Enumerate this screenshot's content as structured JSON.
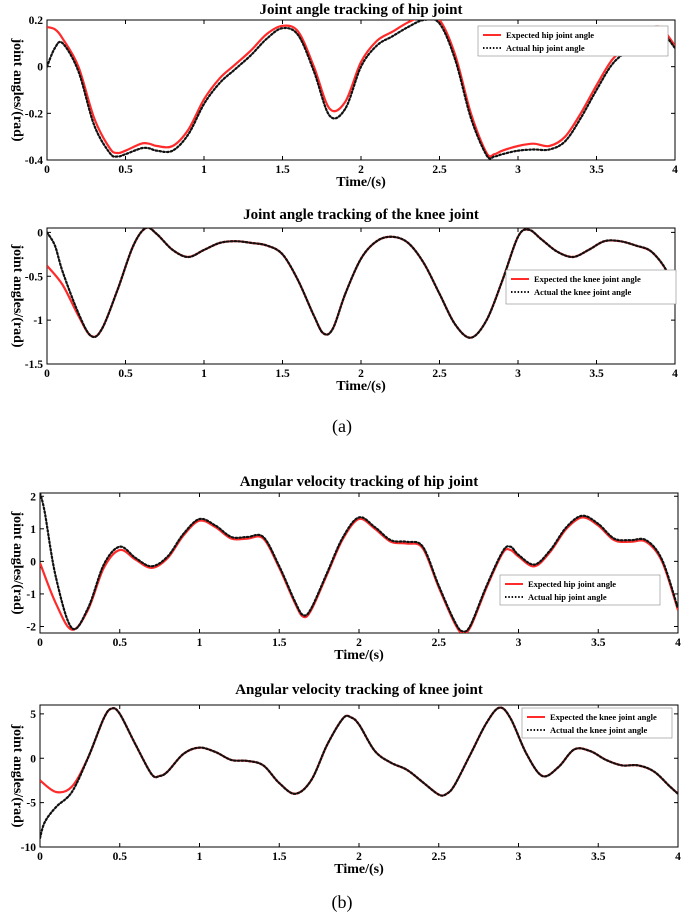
{
  "captions": {
    "a": "(a)",
    "b": "(b)"
  },
  "chart_data": [
    {
      "type": "line",
      "title": "Joint angle tracking of hip joint",
      "xlabel": "Time/(s)",
      "ylabel": "joint angles/(rad)",
      "xlim": [
        0,
        4
      ],
      "ylim": [
        -0.4,
        0.2
      ],
      "xticks": [
        "0",
        "0.5",
        "1",
        "1.5",
        "2",
        "2.5",
        "3",
        "3.5",
        "4"
      ],
      "yticks": [
        "0.2",
        "0",
        "-0.2",
        "-0.4"
      ],
      "grid": false,
      "legend_position": "top-right",
      "colors": {
        "expected": "#ff2a2a",
        "actual": "#111111"
      },
      "series": [
        {
          "name": "Expected hip joint angle",
          "style": "solid",
          "x": [
            0,
            0.05,
            0.1,
            0.2,
            0.3,
            0.4,
            0.45,
            0.5,
            0.6,
            0.65,
            0.7,
            0.8,
            0.9,
            1.0,
            1.1,
            1.2,
            1.3,
            1.4,
            1.5,
            1.6,
            1.7,
            1.8,
            1.9,
            2.0,
            2.1,
            2.2,
            2.3,
            2.4,
            2.5,
            2.6,
            2.7,
            2.8,
            2.85,
            2.9,
            3.0,
            3.1,
            3.2,
            3.3,
            3.4,
            3.5,
            3.6,
            3.7,
            3.8,
            3.9,
            4.0
          ],
          "y": [
            0.17,
            0.16,
            0.12,
            0.0,
            -0.22,
            -0.35,
            -0.37,
            -0.36,
            -0.33,
            -0.33,
            -0.34,
            -0.34,
            -0.27,
            -0.14,
            -0.05,
            0.01,
            0.07,
            0.14,
            0.175,
            0.15,
            0.0,
            -0.18,
            -0.15,
            0.02,
            0.11,
            0.15,
            0.19,
            0.215,
            0.2,
            0.05,
            -0.2,
            -0.37,
            -0.375,
            -0.36,
            -0.34,
            -0.33,
            -0.34,
            -0.3,
            -0.2,
            -0.08,
            0.03,
            0.09,
            0.14,
            0.17,
            0.09
          ]
        },
        {
          "name": "Actual hip joint angle",
          "style": "dotted",
          "x": [
            0,
            0.05,
            0.1,
            0.2,
            0.3,
            0.4,
            0.45,
            0.5,
            0.6,
            0.65,
            0.7,
            0.8,
            0.9,
            1.0,
            1.1,
            1.2,
            1.3,
            1.4,
            1.5,
            1.6,
            1.7,
            1.8,
            1.9,
            2.0,
            2.1,
            2.2,
            2.3,
            2.4,
            2.5,
            2.6,
            2.7,
            2.8,
            2.85,
            2.9,
            3.0,
            3.1,
            3.2,
            3.3,
            3.4,
            3.5,
            3.6,
            3.7,
            3.8,
            3.9,
            4.0
          ],
          "y": [
            0.0,
            0.08,
            0.1,
            -0.02,
            -0.25,
            -0.37,
            -0.385,
            -0.375,
            -0.35,
            -0.35,
            -0.36,
            -0.36,
            -0.29,
            -0.16,
            -0.07,
            -0.01,
            0.05,
            0.12,
            0.165,
            0.135,
            -0.02,
            -0.21,
            -0.18,
            0.0,
            0.09,
            0.13,
            0.17,
            0.2,
            0.185,
            0.03,
            -0.22,
            -0.38,
            -0.385,
            -0.375,
            -0.36,
            -0.355,
            -0.355,
            -0.32,
            -0.22,
            -0.1,
            0.01,
            0.07,
            0.12,
            0.155,
            0.08
          ]
        }
      ]
    },
    {
      "type": "line",
      "title": "Joint angle tracking of the knee joint",
      "xlabel": "Time/(s)",
      "ylabel": "joint angles/(rad)",
      "xlim": [
        0,
        4
      ],
      "ylim": [
        -1.5,
        0.05
      ],
      "xticks": [
        "0",
        "0.5",
        "1",
        "1.5",
        "2",
        "2.5",
        "3",
        "3.5",
        "4"
      ],
      "yticks": [
        "0",
        "-0.5",
        "-1",
        "-1.5"
      ],
      "grid": false,
      "legend_position": "right",
      "colors": {
        "expected": "#ff2a2a",
        "actual": "#111111"
      },
      "series": [
        {
          "name": "Expected the knee joint angle",
          "style": "solid",
          "x": [
            0,
            0.1,
            0.2,
            0.28,
            0.35,
            0.45,
            0.55,
            0.63,
            0.7,
            0.8,
            0.9,
            1.0,
            1.1,
            1.2,
            1.3,
            1.4,
            1.5,
            1.6,
            1.7,
            1.76,
            1.82,
            1.9,
            2.0,
            2.1,
            2.2,
            2.3,
            2.4,
            2.5,
            2.6,
            2.7,
            2.8,
            2.9,
            3.0,
            3.07,
            3.15,
            3.25,
            3.35,
            3.45,
            3.55,
            3.65,
            3.75,
            3.85,
            3.95,
            4.0
          ],
          "y": [
            -0.38,
            -0.6,
            -0.95,
            -1.18,
            -1.1,
            -0.65,
            -0.15,
            0.05,
            -0.02,
            -0.2,
            -0.28,
            -0.2,
            -0.12,
            -0.1,
            -0.12,
            -0.15,
            -0.25,
            -0.55,
            -0.95,
            -1.15,
            -1.1,
            -0.7,
            -0.3,
            -0.1,
            -0.05,
            -0.12,
            -0.35,
            -0.7,
            -1.05,
            -1.2,
            -1.0,
            -0.55,
            -0.05,
            0.03,
            -0.08,
            -0.22,
            -0.28,
            -0.2,
            -0.1,
            -0.1,
            -0.15,
            -0.22,
            -0.45,
            -0.75
          ]
        },
        {
          "name": "Actual the knee joint angle",
          "style": "dotted",
          "x": [
            0,
            0.05,
            0.1,
            0.2,
            0.28,
            0.35,
            0.45,
            0.55,
            0.63,
            0.7,
            0.8,
            0.9,
            1.0,
            1.1,
            1.2,
            1.3,
            1.4,
            1.5,
            1.6,
            1.7,
            1.76,
            1.82,
            1.9,
            2.0,
            2.1,
            2.2,
            2.3,
            2.4,
            2.5,
            2.6,
            2.7,
            2.8,
            2.9,
            3.0,
            3.07,
            3.15,
            3.25,
            3.35,
            3.45,
            3.55,
            3.65,
            3.75,
            3.85,
            3.95,
            4.0
          ],
          "y": [
            0.0,
            -0.15,
            -0.45,
            -0.92,
            -1.18,
            -1.1,
            -0.65,
            -0.15,
            0.05,
            -0.02,
            -0.2,
            -0.28,
            -0.2,
            -0.12,
            -0.1,
            -0.12,
            -0.15,
            -0.25,
            -0.55,
            -0.95,
            -1.15,
            -1.1,
            -0.7,
            -0.3,
            -0.1,
            -0.05,
            -0.12,
            -0.35,
            -0.7,
            -1.05,
            -1.2,
            -1.0,
            -0.55,
            -0.05,
            0.03,
            -0.08,
            -0.22,
            -0.28,
            -0.2,
            -0.1,
            -0.1,
            -0.15,
            -0.22,
            -0.45,
            -0.75
          ]
        }
      ]
    },
    {
      "type": "line",
      "title": "Angular velocity tracking of hip joint",
      "xlabel": "Time/(s)",
      "ylabel": "joint angles/(rad)",
      "xlim": [
        0,
        4
      ],
      "ylim": [
        -2.2,
        2.1
      ],
      "xticks": [
        "0",
        "0.5",
        "1",
        "1.5",
        "2",
        "2.5",
        "3",
        "3.5",
        "4"
      ],
      "yticks": [
        "2",
        "1",
        "0",
        "-1",
        "-2"
      ],
      "grid": false,
      "legend_position": "bottom-right",
      "colors": {
        "expected": "#ff2a2a",
        "actual": "#111111"
      },
      "series": [
        {
          "name": "Expected hip joint angle",
          "style": "solid",
          "x": [
            0,
            0.1,
            0.2,
            0.3,
            0.4,
            0.5,
            0.6,
            0.7,
            0.8,
            0.9,
            1.0,
            1.1,
            1.2,
            1.3,
            1.4,
            1.5,
            1.6,
            1.65,
            1.7,
            1.8,
            1.9,
            2.0,
            2.1,
            2.2,
            2.3,
            2.4,
            2.5,
            2.6,
            2.65,
            2.7,
            2.8,
            2.9,
            2.95,
            3.0,
            3.1,
            3.2,
            3.3,
            3.4,
            3.5,
            3.6,
            3.7,
            3.8,
            3.9,
            4.0
          ],
          "y": [
            -0.05,
            -1.3,
            -2.1,
            -1.5,
            -0.2,
            0.35,
            0.05,
            -0.2,
            0.1,
            0.8,
            1.25,
            1.05,
            0.7,
            0.7,
            0.7,
            -0.2,
            -1.3,
            -1.7,
            -1.5,
            -0.4,
            0.7,
            1.3,
            1.0,
            0.6,
            0.55,
            0.4,
            -0.8,
            -1.9,
            -2.2,
            -2.0,
            -0.8,
            0.25,
            0.35,
            0.15,
            -0.15,
            0.3,
            1.0,
            1.35,
            1.1,
            0.65,
            0.6,
            0.6,
            0.0,
            -1.5
          ]
        },
        {
          "name": "Actual hip joint angle",
          "style": "dotted",
          "x": [
            0,
            0.03,
            0.1,
            0.2,
            0.3,
            0.4,
            0.5,
            0.6,
            0.7,
            0.8,
            0.9,
            1.0,
            1.1,
            1.2,
            1.3,
            1.4,
            1.5,
            1.6,
            1.65,
            1.7,
            1.8,
            1.9,
            2.0,
            2.1,
            2.2,
            2.3,
            2.4,
            2.5,
            2.6,
            2.65,
            2.7,
            2.8,
            2.9,
            2.95,
            3.0,
            3.1,
            3.2,
            3.3,
            3.4,
            3.5,
            3.6,
            3.7,
            3.8,
            3.9,
            4.0
          ],
          "y": [
            2.1,
            1.5,
            -0.5,
            -2.05,
            -1.45,
            -0.1,
            0.45,
            0.1,
            -0.15,
            0.15,
            0.85,
            1.3,
            1.1,
            0.75,
            0.75,
            0.75,
            -0.15,
            -1.25,
            -1.65,
            -1.45,
            -0.35,
            0.75,
            1.35,
            1.05,
            0.65,
            0.6,
            0.45,
            -0.75,
            -1.85,
            -2.15,
            -1.95,
            -0.75,
            0.3,
            0.45,
            0.2,
            -0.1,
            0.35,
            1.05,
            1.4,
            1.15,
            0.7,
            0.65,
            0.65,
            0.05,
            -1.45
          ]
        }
      ]
    },
    {
      "type": "line",
      "title": "Angular velocity tracking of knee joint",
      "xlabel": "Time/(s)",
      "ylabel": "joint angles/(rad)",
      "xlim": [
        0,
        4
      ],
      "ylim": [
        -10,
        6
      ],
      "xticks": [
        "0",
        "0.5",
        "1",
        "1.5",
        "2",
        "2.5",
        "3",
        "3.5",
        "4"
      ],
      "yticks": [
        "5",
        "0",
        "-5",
        "-10"
      ],
      "grid": false,
      "legend_position": "top-right",
      "colors": {
        "expected": "#ff2a2a",
        "actual": "#111111"
      },
      "series": [
        {
          "name": "Expected the knee joint angle",
          "style": "solid",
          "x": [
            0,
            0.1,
            0.2,
            0.3,
            0.4,
            0.45,
            0.5,
            0.6,
            0.7,
            0.75,
            0.8,
            0.9,
            1.0,
            1.1,
            1.2,
            1.3,
            1.4,
            1.5,
            1.6,
            1.7,
            1.8,
            1.9,
            1.95,
            2.0,
            2.1,
            2.2,
            2.3,
            2.4,
            2.5,
            2.55,
            2.6,
            2.7,
            2.8,
            2.88,
            2.95,
            3.05,
            3.15,
            3.25,
            3.35,
            3.45,
            3.55,
            3.65,
            3.75,
            3.85,
            3.95,
            4.0
          ],
          "y": [
            -2.5,
            -3.8,
            -3.2,
            0.0,
            4.5,
            5.6,
            5.0,
            1.5,
            -1.8,
            -2.0,
            -1.5,
            0.5,
            1.2,
            0.7,
            -0.2,
            -0.3,
            -0.8,
            -2.8,
            -4.0,
            -2.5,
            1.5,
            4.5,
            4.6,
            3.8,
            0.8,
            -0.5,
            -1.3,
            -2.7,
            -4.1,
            -4.0,
            -3.0,
            0.5,
            4.0,
            5.7,
            4.5,
            0.5,
            -2.0,
            -1.0,
            1.0,
            0.8,
            -0.2,
            -0.8,
            -0.8,
            -1.5,
            -3.2,
            -4.0
          ]
        },
        {
          "name": "Actual the knee joint angle",
          "style": "dotted",
          "x": [
            0,
            0.03,
            0.1,
            0.2,
            0.3,
            0.4,
            0.45,
            0.5,
            0.6,
            0.7,
            0.75,
            0.8,
            0.9,
            1.0,
            1.1,
            1.2,
            1.3,
            1.4,
            1.5,
            1.6,
            1.7,
            1.8,
            1.9,
            1.95,
            2.0,
            2.1,
            2.2,
            2.3,
            2.4,
            2.5,
            2.55,
            2.6,
            2.7,
            2.8,
            2.88,
            2.95,
            3.05,
            3.15,
            3.25,
            3.35,
            3.45,
            3.55,
            3.65,
            3.75,
            3.85,
            3.95,
            4.0
          ],
          "y": [
            -9.0,
            -7.2,
            -5.5,
            -3.8,
            0.0,
            4.5,
            5.6,
            5.0,
            1.5,
            -1.8,
            -2.0,
            -1.5,
            0.5,
            1.2,
            0.7,
            -0.2,
            -0.3,
            -0.8,
            -2.8,
            -4.0,
            -2.5,
            1.5,
            4.5,
            4.6,
            3.8,
            0.8,
            -0.5,
            -1.3,
            -2.7,
            -4.1,
            -4.0,
            -3.0,
            0.5,
            4.0,
            5.7,
            4.5,
            0.5,
            -2.0,
            -1.0,
            1.0,
            0.8,
            -0.2,
            -0.8,
            -0.8,
            -1.5,
            -3.2,
            -4.0
          ]
        }
      ]
    }
  ]
}
